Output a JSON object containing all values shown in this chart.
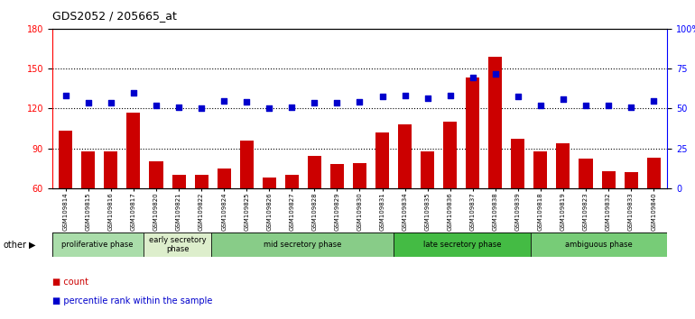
{
  "title": "GDS2052 / 205665_at",
  "categories": [
    "GSM109814",
    "GSM109815",
    "GSM109816",
    "GSM109817",
    "GSM109820",
    "GSM109821",
    "GSM109822",
    "GSM109824",
    "GSM109825",
    "GSM109826",
    "GSM109827",
    "GSM109828",
    "GSM109829",
    "GSM109830",
    "GSM109831",
    "GSM109834",
    "GSM109835",
    "GSM109836",
    "GSM109837",
    "GSM109838",
    "GSM109839",
    "GSM109818",
    "GSM109819",
    "GSM109823",
    "GSM109832",
    "GSM109833",
    "GSM109840"
  ],
  "bar_values": [
    103,
    88,
    88,
    117,
    80,
    70,
    70,
    75,
    96,
    68,
    70,
    84,
    78,
    79,
    102,
    108,
    88,
    110,
    143,
    159,
    97,
    88,
    94,
    82,
    73,
    72,
    83
  ],
  "dot_values_left_scale": [
    130,
    124,
    124,
    132,
    122,
    121,
    120,
    126,
    125,
    120,
    121,
    124,
    124,
    125,
    129,
    130,
    128,
    130,
    143,
    146,
    129,
    122,
    127,
    122,
    122,
    121,
    126
  ],
  "phase_groups": [
    {
      "label": "proliferative phase",
      "start": 0,
      "end": 4,
      "color": "#aaddaa"
    },
    {
      "label": "early secretory\nphase",
      "start": 4,
      "end": 7,
      "color": "#ddeecc"
    },
    {
      "label": "mid secretory phase",
      "start": 7,
      "end": 15,
      "color": "#88cc88"
    },
    {
      "label": "late secretory phase",
      "start": 15,
      "end": 21,
      "color": "#44bb44"
    },
    {
      "label": "ambiguous phase",
      "start": 21,
      "end": 27,
      "color": "#77cc77"
    }
  ],
  "ylim_left": [
    60,
    180
  ],
  "ylim_right": [
    0,
    100
  ],
  "yticks_left": [
    60,
    90,
    120,
    150,
    180
  ],
  "yticks_right": [
    0,
    25,
    50,
    75,
    100
  ],
  "ytick_labels_right": [
    "0",
    "25",
    "50",
    "75",
    "100%"
  ],
  "bar_color": "#cc0000",
  "dot_color": "#0000cc",
  "bar_width": 0.6,
  "plot_bg_color": "#ffffff",
  "other_label": "other"
}
